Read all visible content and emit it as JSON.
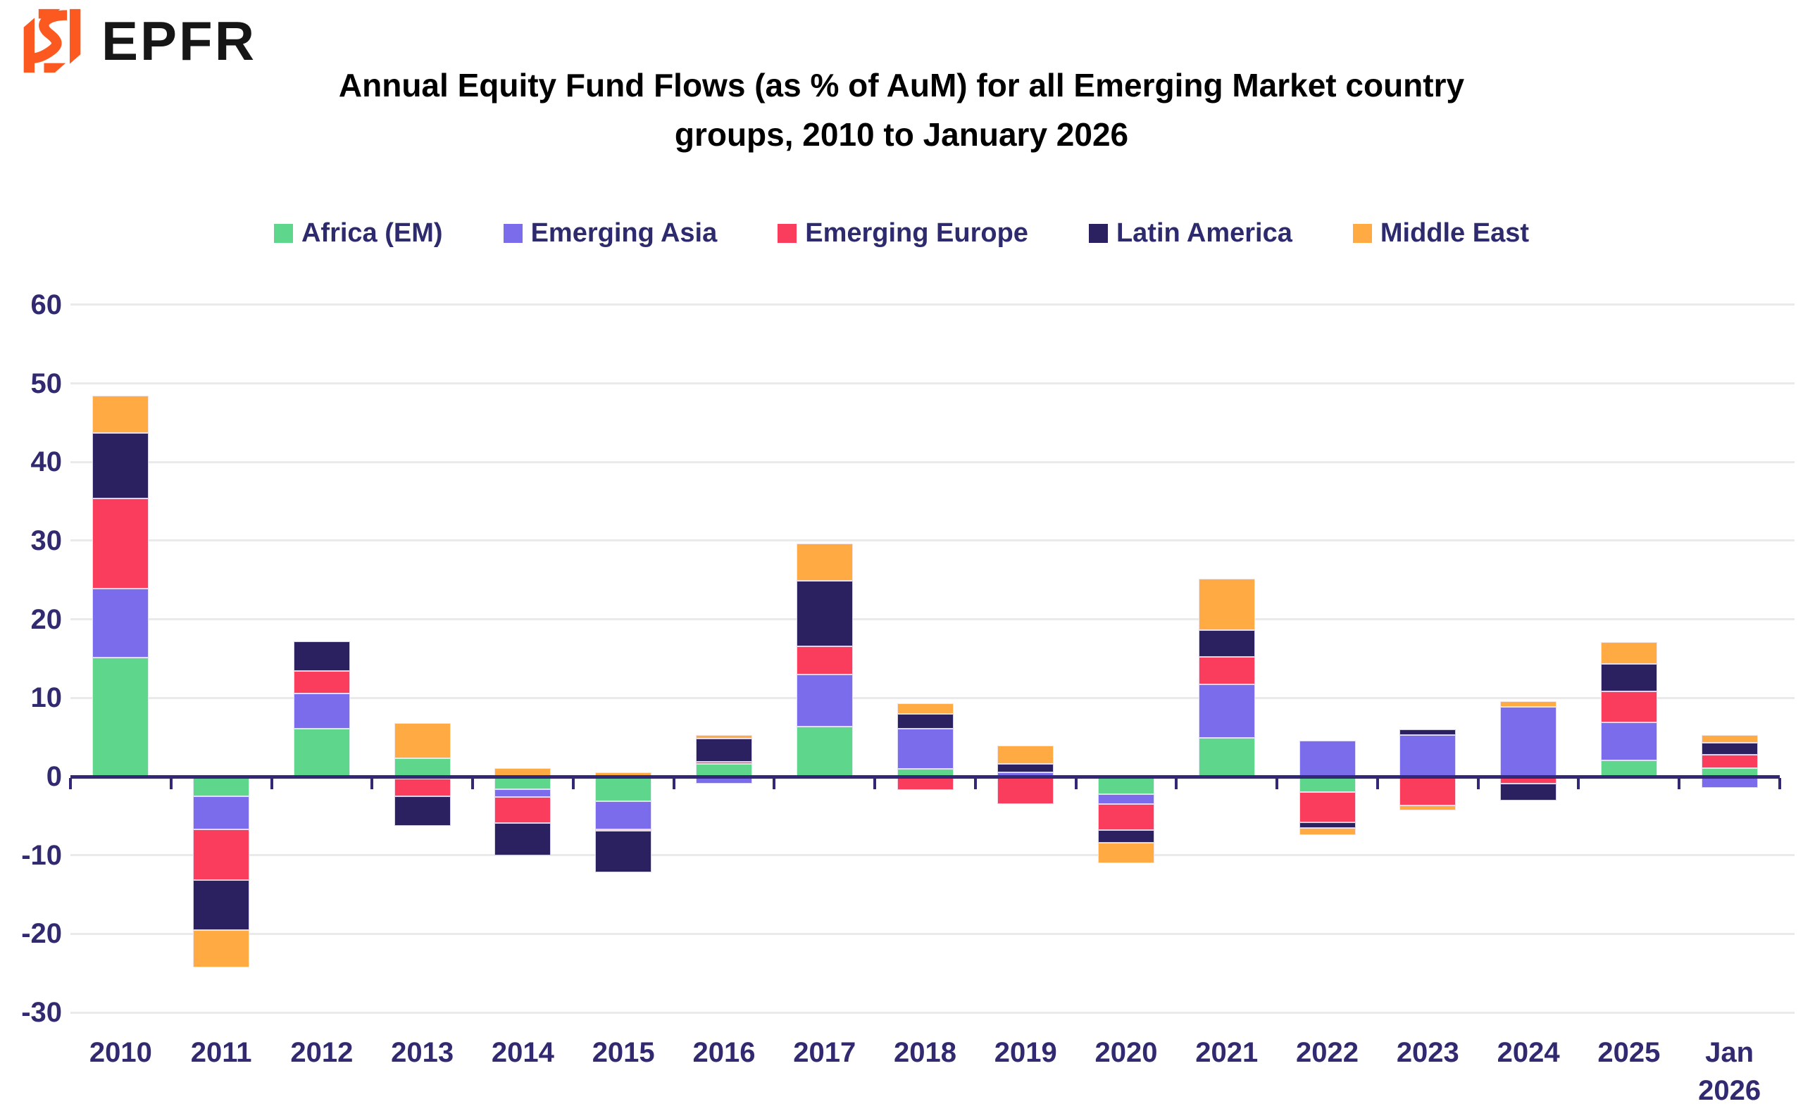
{
  "logo": {
    "brand": "EPFR",
    "mark_color": "#FB5920"
  },
  "title": {
    "line1": "Annual Equity Fund Flows (as % of AuM) for all Emerging Market country",
    "line2": "groups, 2010 to January 2026"
  },
  "chart_data": {
    "type": "bar",
    "stacked": true,
    "title": "Annual Equity Fund Flows (as % of AuM) for all Emerging Market country groups, 2010 to January 2026",
    "legend_position": "top",
    "grid": true,
    "ylim": [
      -30,
      60
    ],
    "ytick_step": 10,
    "y_ticks": [
      60,
      50,
      40,
      30,
      20,
      10,
      0,
      -10,
      -20,
      -30
    ],
    "categories": [
      "2010",
      "2011",
      "2012",
      "2013",
      "2014",
      "2015",
      "2016",
      "2017",
      "2018",
      "2019",
      "2020",
      "2021",
      "2022",
      "2023",
      "2024",
      "2025",
      "Jan 2026"
    ],
    "series": [
      {
        "name": "Africa (EM)",
        "color": "#5ED68C",
        "values": [
          15.1,
          -2.5,
          6.1,
          2.3,
          -1.6,
          -3.1,
          1.6,
          6.4,
          1.0,
          0,
          -2.2,
          4.9,
          -2.0,
          0,
          0,
          2.1,
          1.1
        ]
      },
      {
        "name": "Emerging Asia",
        "color": "#7B6CEC",
        "values": [
          8.8,
          -4.2,
          4.5,
          -0.3,
          -1.0,
          -3.6,
          -0.9,
          6.6,
          5.1,
          0.5,
          -1.3,
          6.8,
          4.6,
          5.3,
          8.9,
          4.8,
          -1.4
        ]
      },
      {
        "name": "Emerging Europe",
        "color": "#FB3D5D",
        "values": [
          11.5,
          -6.5,
          2.8,
          -2.2,
          -3.3,
          -0.2,
          0.3,
          3.6,
          -1.7,
          -3.5,
          -3.3,
          3.5,
          -3.8,
          -3.7,
          -0.9,
          3.9,
          1.7
        ]
      },
      {
        "name": "Latin America",
        "color": "#2B2161",
        "values": [
          8.3,
          -6.3,
          3.8,
          -3.8,
          -4.1,
          -5.3,
          2.9,
          8.3,
          1.9,
          1.1,
          -1.6,
          3.4,
          -0.7,
          0.7,
          -2.1,
          3.5,
          1.5
        ]
      },
      {
        "name": "Middle East",
        "color": "#FFAA42",
        "values": [
          4.7,
          -4.8,
          -0.3,
          4.5,
          1.1,
          0.5,
          0.5,
          4.7,
          1.3,
          2.3,
          -2.6,
          6.6,
          -0.9,
          -0.6,
          0.7,
          2.8,
          1.0
        ]
      }
    ],
    "colors": {
      "axis": "#322876",
      "grid": "#EAEAEA",
      "tick_labels": "#312A70",
      "legend_text": "#2E2A6E"
    }
  }
}
